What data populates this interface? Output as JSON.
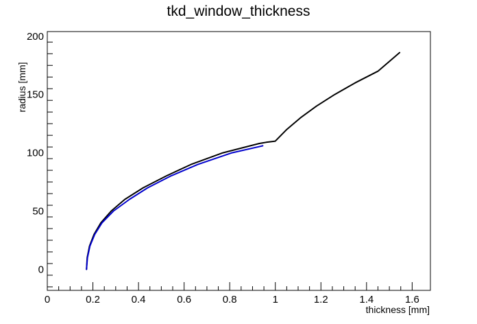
{
  "chart_data": {
    "type": "line",
    "title": "tkd_window_thickness",
    "xlabel": "thickness [mm]",
    "ylabel": "radius [mm]",
    "xlim": [
      0,
      1.68
    ],
    "ylim": [
      -18,
      204
    ],
    "x_ticks": [
      "0",
      "0.2",
      "0.4",
      "0.6",
      "0.8",
      "1",
      "1.2",
      "1.4",
      "1.6"
    ],
    "y_ticks": [
      "0",
      "50",
      "100",
      "150",
      "200"
    ],
    "grid": false,
    "legend": "none",
    "series": [
      {
        "color": "#000000",
        "points": [
          [
            0.172,
            0
          ],
          [
            0.175,
            10
          ],
          [
            0.185,
            20
          ],
          [
            0.205,
            30
          ],
          [
            0.235,
            40
          ],
          [
            0.28,
            50
          ],
          [
            0.34,
            60
          ],
          [
            0.42,
            70
          ],
          [
            0.52,
            80
          ],
          [
            0.63,
            90
          ],
          [
            0.77,
            100
          ],
          [
            0.93,
            108
          ],
          [
            0.96,
            109
          ],
          [
            1.0,
            110
          ],
          [
            1.05,
            120
          ],
          [
            1.11,
            130
          ],
          [
            1.18,
            140
          ],
          [
            1.26,
            150
          ],
          [
            1.35,
            160
          ],
          [
            1.45,
            170
          ],
          [
            1.545,
            186
          ]
        ]
      },
      {
        "color": "#0000cc",
        "points": [
          [
            0.172,
            0
          ],
          [
            0.176,
            10
          ],
          [
            0.187,
            20
          ],
          [
            0.208,
            30
          ],
          [
            0.24,
            40
          ],
          [
            0.29,
            50
          ],
          [
            0.36,
            60
          ],
          [
            0.44,
            70
          ],
          [
            0.54,
            80
          ],
          [
            0.66,
            90
          ],
          [
            0.81,
            100
          ],
          [
            0.945,
            106
          ]
        ]
      }
    ]
  }
}
